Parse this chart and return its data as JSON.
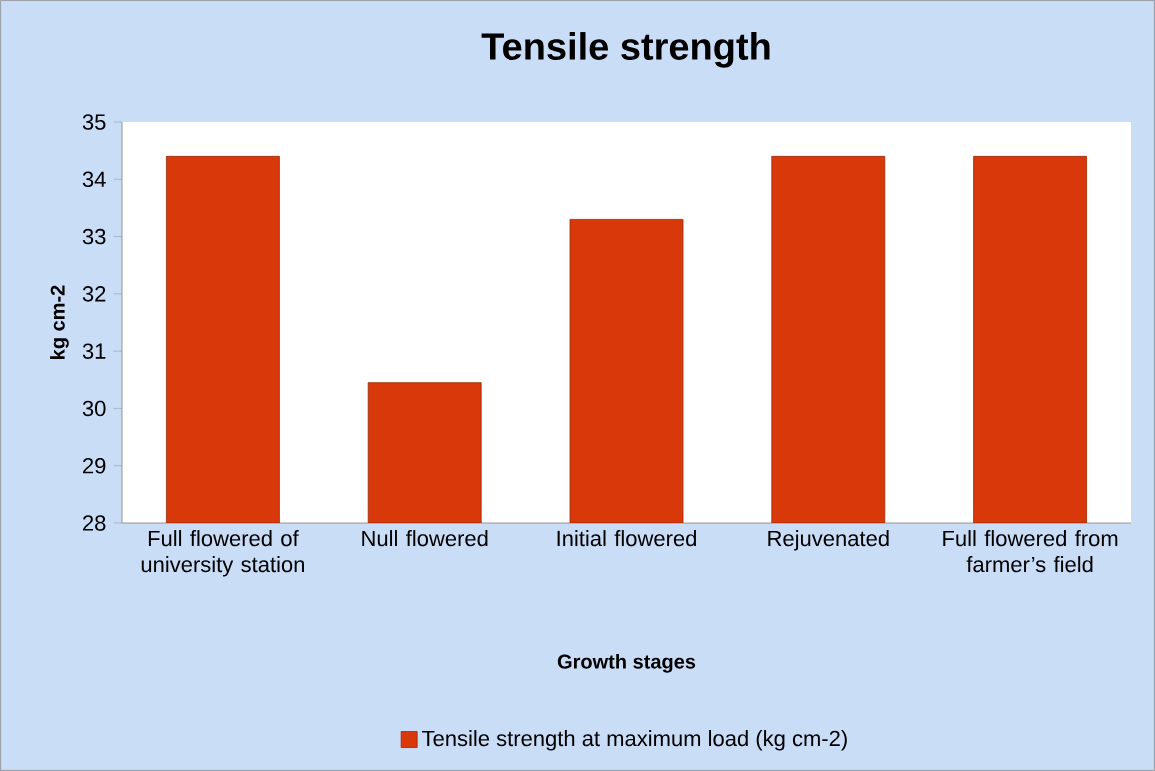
{
  "chart_data": {
    "type": "bar",
    "title": "Tensile strength",
    "xlabel": "Growth stages",
    "ylabel": "kg cm-2",
    "categories": [
      "Full flowered of university station",
      "Null flowered",
      "Initial flowered",
      "Rejuvenated",
      "Full flowered from farmer’s field"
    ],
    "series": [
      {
        "name": "Tensile strength at maximum load (kg cm-2)",
        "color": "#d9390a",
        "values": [
          34.4,
          30.45,
          33.3,
          34.4,
          34.4
        ]
      }
    ],
    "ylim": [
      28,
      35
    ],
    "yticks": [
      28,
      29,
      30,
      31,
      32,
      33,
      34,
      35
    ],
    "legend": "bottom"
  }
}
